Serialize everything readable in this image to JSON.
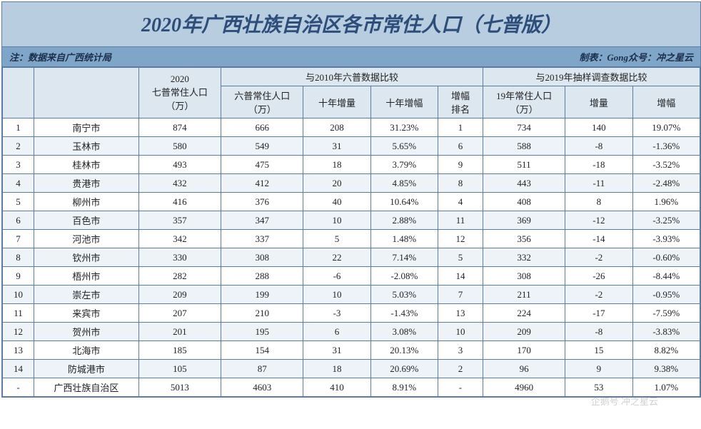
{
  "title": "2020年广西壮族自治区各市常住人口（七普版）",
  "note_left": "注：数据来自广西统计局",
  "note_right": "制表：Gong众号：冲之星云",
  "headers": {
    "pop2020": "2020\n七普常住人口\n（万）",
    "cmp2010": "与2010年六普数据比较",
    "pop6": "六普常住人口\n（万）",
    "inc10": "十年增量",
    "pct10": "十年增幅",
    "rank": "增幅\n排名",
    "cmp2019": "与2019年抽样调查数据比较",
    "pop19": "19年常住人口\n（万）",
    "inc19": "增量",
    "pct19": "增幅"
  },
  "rows": [
    {
      "idx": "1",
      "city": "南宁市",
      "pop2020": "874",
      "pop6": "666",
      "inc10": "208",
      "pct10": "31.23%",
      "rank": "1",
      "pop19": "734",
      "inc19": "140",
      "pct19": "19.07%"
    },
    {
      "idx": "2",
      "city": "玉林市",
      "pop2020": "580",
      "pop6": "549",
      "inc10": "31",
      "pct10": "5.65%",
      "rank": "6",
      "pop19": "588",
      "inc19": "-8",
      "pct19": "-1.36%"
    },
    {
      "idx": "3",
      "city": "桂林市",
      "pop2020": "493",
      "pop6": "475",
      "inc10": "18",
      "pct10": "3.79%",
      "rank": "9",
      "pop19": "511",
      "inc19": "-18",
      "pct19": "-3.52%"
    },
    {
      "idx": "4",
      "city": "贵港市",
      "pop2020": "432",
      "pop6": "412",
      "inc10": "20",
      "pct10": "4.85%",
      "rank": "8",
      "pop19": "443",
      "inc19": "-11",
      "pct19": "-2.48%"
    },
    {
      "idx": "5",
      "city": "柳州市",
      "pop2020": "416",
      "pop6": "376",
      "inc10": "40",
      "pct10": "10.64%",
      "rank": "4",
      "pop19": "408",
      "inc19": "8",
      "pct19": "1.96%"
    },
    {
      "idx": "6",
      "city": "百色市",
      "pop2020": "357",
      "pop6": "347",
      "inc10": "10",
      "pct10": "2.88%",
      "rank": "11",
      "pop19": "369",
      "inc19": "-12",
      "pct19": "-3.25%"
    },
    {
      "idx": "7",
      "city": "河池市",
      "pop2020": "342",
      "pop6": "337",
      "inc10": "5",
      "pct10": "1.48%",
      "rank": "12",
      "pop19": "356",
      "inc19": "-14",
      "pct19": "-3.93%"
    },
    {
      "idx": "8",
      "city": "钦州市",
      "pop2020": "330",
      "pop6": "308",
      "inc10": "22",
      "pct10": "7.14%",
      "rank": "5",
      "pop19": "332",
      "inc19": "-2",
      "pct19": "-0.60%"
    },
    {
      "idx": "9",
      "city": "梧州市",
      "pop2020": "282",
      "pop6": "288",
      "inc10": "-6",
      "pct10": "-2.08%",
      "rank": "14",
      "pop19": "308",
      "inc19": "-26",
      "pct19": "-8.44%"
    },
    {
      "idx": "10",
      "city": "崇左市",
      "pop2020": "209",
      "pop6": "199",
      "inc10": "10",
      "pct10": "5.03%",
      "rank": "7",
      "pop19": "211",
      "inc19": "-2",
      "pct19": "-0.95%"
    },
    {
      "idx": "11",
      "city": "来宾市",
      "pop2020": "207",
      "pop6": "210",
      "inc10": "-3",
      "pct10": "-1.43%",
      "rank": "13",
      "pop19": "224",
      "inc19": "-17",
      "pct19": "-7.59%"
    },
    {
      "idx": "12",
      "city": "贺州市",
      "pop2020": "201",
      "pop6": "195",
      "inc10": "6",
      "pct10": "3.08%",
      "rank": "10",
      "pop19": "209",
      "inc19": "-8",
      "pct19": "-3.83%"
    },
    {
      "idx": "13",
      "city": "北海市",
      "pop2020": "185",
      "pop6": "154",
      "inc10": "31",
      "pct10": "20.13%",
      "rank": "3",
      "pop19": "170",
      "inc19": "15",
      "pct19": "8.82%"
    },
    {
      "idx": "14",
      "city": "防城港市",
      "pop2020": "105",
      "pop6": "87",
      "inc10": "18",
      "pct10": "20.69%",
      "rank": "2",
      "pop19": "96",
      "inc19": "9",
      "pct19": "9.38%"
    },
    {
      "idx": "-",
      "city": "广西壮族自治区",
      "pop2020": "5013",
      "pop6": "4603",
      "inc10": "410",
      "pct10": "8.91%",
      "rank": "-",
      "pop19": "4960",
      "inc19": "53",
      "pct19": "1.07%",
      "total": true
    }
  ],
  "watermark": "企鹅号 冲之星云",
  "styling": {
    "title_bg": "#b8cde0",
    "title_color": "#2d4d7a",
    "note_bg": "#7fa6c9",
    "header_bg": "#dde7f0",
    "row_even_bg": "#eef3f8",
    "row_odd_bg": "#ffffff",
    "border_color": "#5b7ca3",
    "font_family": "SimSun, Microsoft YaHei",
    "title_fontsize": 28,
    "cell_fontsize": 13
  }
}
